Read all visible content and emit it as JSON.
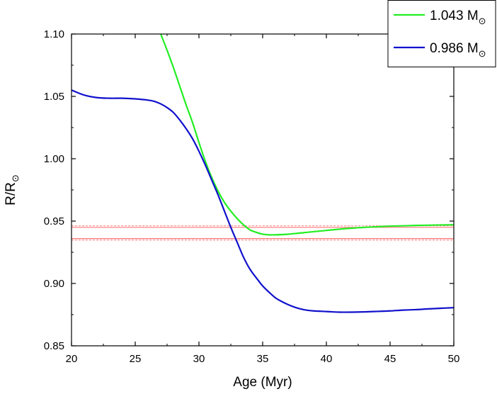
{
  "chart_data": {
    "type": "line",
    "title": "",
    "xlabel": "Age (Myr)",
    "ylabel": "R/R",
    "ylabel_subscript": "⊙",
    "xlim": [
      20,
      50
    ],
    "ylim": [
      0.85,
      1.1
    ],
    "x_ticks": [
      20,
      25,
      30,
      35,
      40,
      45,
      50
    ],
    "x_tick_labels": [
      "20",
      "25",
      "30",
      "35",
      "40",
      "45",
      "50"
    ],
    "y_ticks": [
      0.85,
      0.9,
      0.95,
      1.0,
      1.05,
      1.1
    ],
    "y_tick_labels": [
      "0.85",
      "0.90",
      "0.95",
      "1.00",
      "1.05",
      "1.10"
    ],
    "grid": false,
    "legend_position": "top-right outside",
    "series": [
      {
        "name": "1.043 M",
        "name_subscript": "⊙",
        "color": "#22ee22",
        "x": [
          27.0,
          27.5,
          28.0,
          28.5,
          29.0,
          29.5,
          30.0,
          30.5,
          31.0,
          31.5,
          32.0,
          32.5,
          33.0,
          33.5,
          34.0,
          34.5,
          35.0,
          35.5,
          36.0,
          37.0,
          38.0,
          39.0,
          40.0,
          41.0,
          42.0,
          43.0,
          44.0,
          45.0,
          46.0,
          47.0,
          48.0,
          49.0,
          50.0
        ],
        "y": [
          1.1,
          1.087,
          1.073,
          1.058,
          1.043,
          1.029,
          1.013,
          0.998,
          0.985,
          0.974,
          0.965,
          0.958,
          0.952,
          0.947,
          0.943,
          0.941,
          0.9395,
          0.939,
          0.939,
          0.9395,
          0.9405,
          0.9415,
          0.9425,
          0.9435,
          0.9443,
          0.945,
          0.9455,
          0.946,
          0.9462,
          0.9465,
          0.9467,
          0.9469,
          0.947
        ]
      },
      {
        "name": "0.986 M",
        "name_subscript": "⊙",
        "color": "#1111cc",
        "x": [
          20.0,
          21.0,
          22.0,
          23.0,
          24.0,
          25.0,
          26.0,
          26.5,
          27.0,
          27.5,
          28.0,
          28.5,
          29.0,
          29.5,
          30.0,
          30.5,
          31.0,
          31.5,
          32.0,
          32.5,
          33.0,
          33.5,
          34.0,
          34.5,
          35.0,
          35.5,
          36.0,
          36.5,
          37.0,
          37.5,
          38.0,
          38.5,
          39.0,
          40.0,
          41.0,
          42.0,
          43.0,
          44.0,
          45.0,
          46.0,
          47.0,
          48.0,
          49.0,
          50.0
        ],
        "y": [
          1.055,
          1.051,
          1.049,
          1.0485,
          1.0485,
          1.048,
          1.047,
          1.046,
          1.044,
          1.041,
          1.037,
          1.031,
          1.024,
          1.016,
          1.006,
          0.995,
          0.983,
          0.971,
          0.958,
          0.945,
          0.933,
          0.921,
          0.9115,
          0.9045,
          0.898,
          0.893,
          0.8885,
          0.8855,
          0.883,
          0.881,
          0.8795,
          0.8785,
          0.878,
          0.8775,
          0.877,
          0.877,
          0.8772,
          0.8776,
          0.878,
          0.8786,
          0.879,
          0.8796,
          0.8801,
          0.8806
        ]
      }
    ],
    "reference_lines": [
      {
        "y": 0.945,
        "color": "#ff7777",
        "style": "solid"
      },
      {
        "y": 0.936,
        "color": "#ff7777",
        "style": "solid"
      },
      {
        "y": 0.9462,
        "color": "#ff7777",
        "style": "dashed"
      },
      {
        "y": 0.9348,
        "color": "#ff7777",
        "style": "dashed"
      }
    ]
  }
}
